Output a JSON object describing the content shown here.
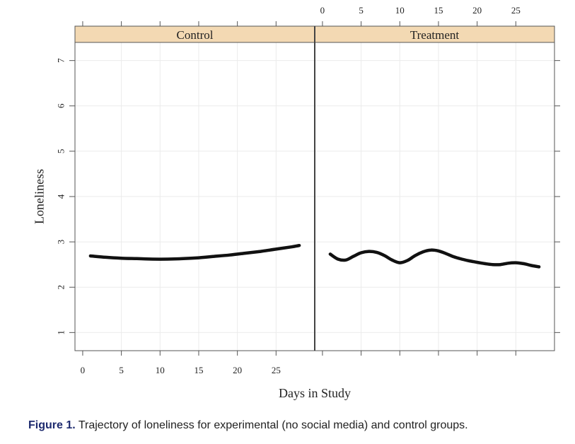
{
  "caption": {
    "label": "Figure 1.",
    "text": "Trajectory of loneliness for experimental (no social media) and control groups."
  },
  "chart_data": {
    "type": "line",
    "xlabel": "Days in Study",
    "ylabel": "Loneliness",
    "xlim": [
      -1,
      30
    ],
    "ylim": [
      0.6,
      7.4
    ],
    "x_ticks": [
      0,
      5,
      10,
      15,
      20,
      25
    ],
    "y_ticks": [
      1,
      2,
      3,
      4,
      5,
      6,
      7
    ],
    "grid": true,
    "panels": [
      {
        "strip": "Control",
        "x": [
          1,
          3,
          5,
          7,
          9,
          11,
          13,
          15,
          17,
          19,
          21,
          23,
          25,
          27,
          28
        ],
        "y": [
          2.69,
          2.66,
          2.64,
          2.63,
          2.62,
          2.62,
          2.63,
          2.65,
          2.68,
          2.71,
          2.75,
          2.79,
          2.84,
          2.89,
          2.92
        ]
      },
      {
        "strip": "Treatment",
        "x": [
          1,
          2,
          3,
          4,
          5,
          6,
          7,
          8,
          9,
          10,
          11,
          12,
          13,
          14,
          15,
          16,
          17,
          18,
          19,
          20,
          21,
          22,
          23,
          24,
          25,
          26,
          27,
          28
        ],
        "y": [
          2.73,
          2.62,
          2.6,
          2.68,
          2.76,
          2.79,
          2.77,
          2.7,
          2.6,
          2.54,
          2.59,
          2.7,
          2.78,
          2.82,
          2.8,
          2.74,
          2.67,
          2.62,
          2.58,
          2.55,
          2.52,
          2.5,
          2.5,
          2.53,
          2.54,
          2.52,
          2.48,
          2.45
        ]
      }
    ]
  }
}
